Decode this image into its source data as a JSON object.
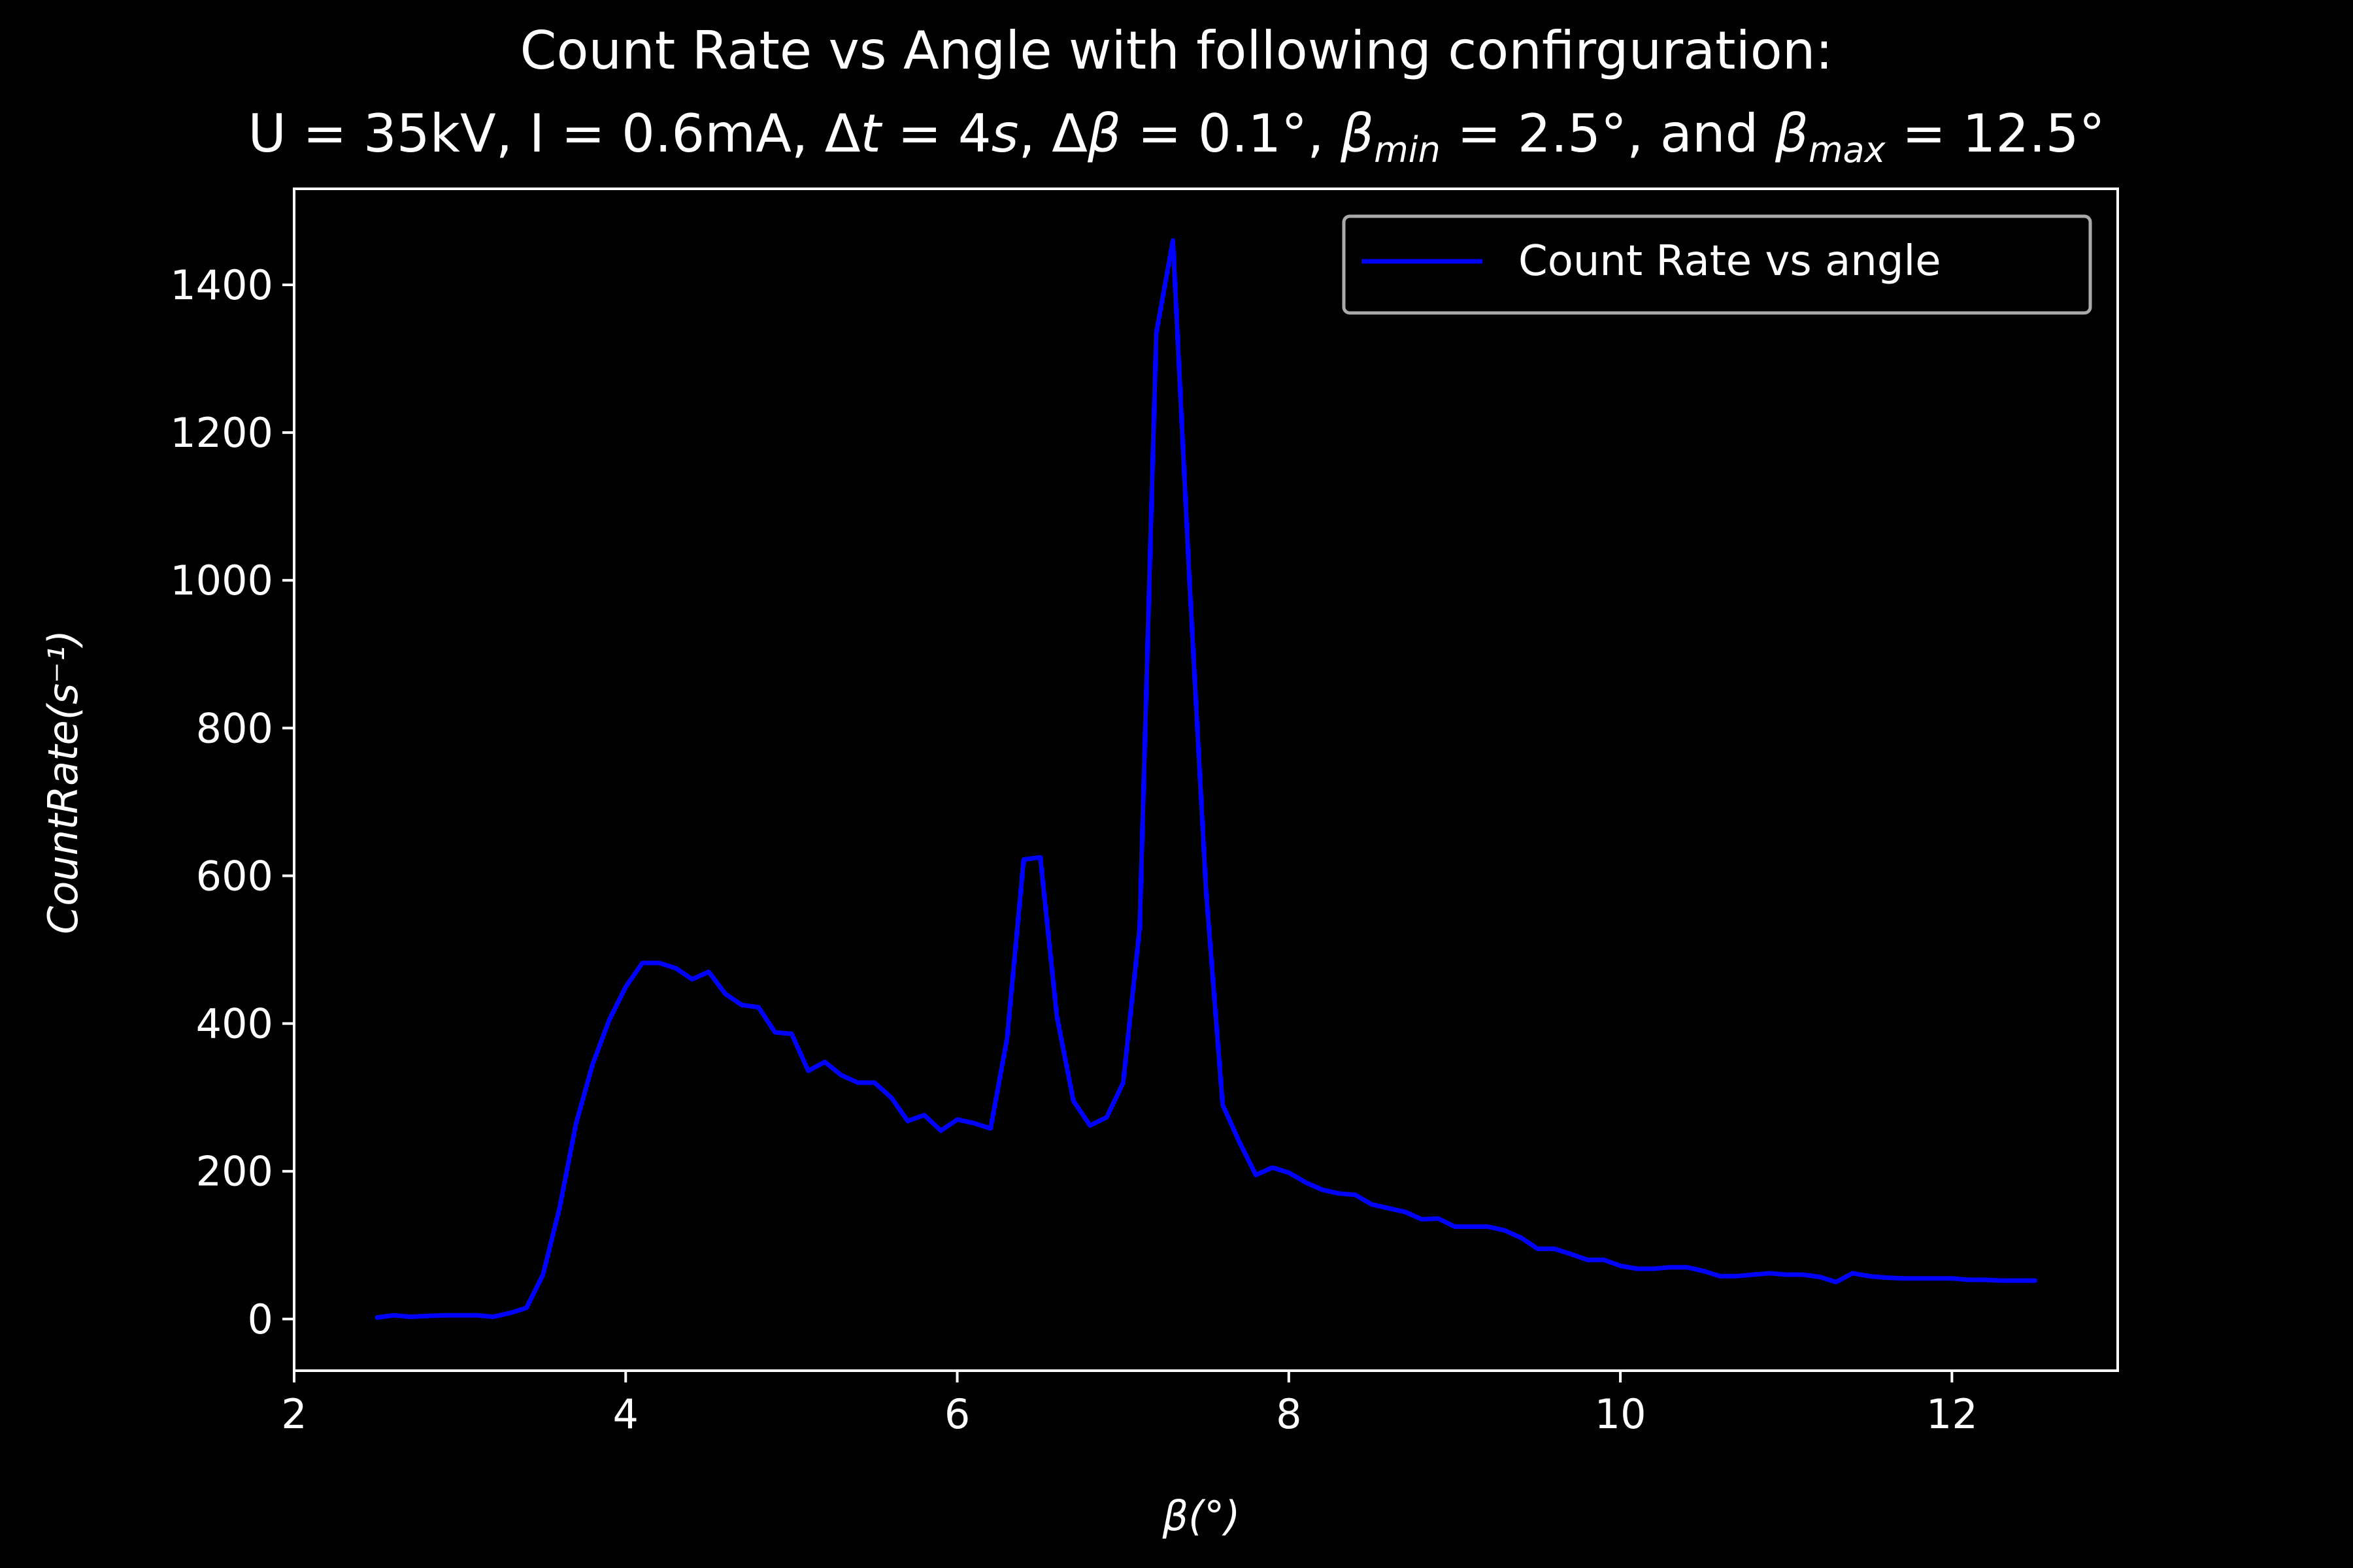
{
  "chart_data": {
    "type": "line",
    "title_line1": "Count Rate vs Angle with following confirguration:",
    "title_line2": "U = 35kV, I = 0.6mA, Δt = 4s, Δβ = 0.1°, βmin = 2.5°,  and βmax = 12.5°",
    "xlabel": "β(°)",
    "ylabel": "CountRate(s⁻¹)",
    "xlim": [
      2,
      13
    ],
    "ylim": [
      -70,
      1530
    ],
    "xticks": [
      2,
      4,
      6,
      8,
      10,
      12
    ],
    "yticks": [
      0,
      200,
      400,
      600,
      800,
      1000,
      1200,
      1400
    ],
    "grid": false,
    "legend_position": "top-right",
    "colors": {
      "background": "#000000",
      "axes": "#ffffff",
      "series": "#0000ff"
    },
    "series": [
      {
        "name": "Count Rate vs angle",
        "x": [
          2.5,
          2.6,
          2.7,
          2.8,
          2.9,
          3.0,
          3.1,
          3.2,
          3.3,
          3.4,
          3.5,
          3.6,
          3.7,
          3.8,
          3.9,
          4.0,
          4.1,
          4.2,
          4.3,
          4.4,
          4.5,
          4.6,
          4.7,
          4.8,
          4.9,
          5.0,
          5.1,
          5.2,
          5.3,
          5.4,
          5.5,
          5.6,
          5.7,
          5.8,
          5.9,
          6.0,
          6.1,
          6.2,
          6.3,
          6.4,
          6.5,
          6.6,
          6.7,
          6.8,
          6.9,
          7.0,
          7.1,
          7.2,
          7.3,
          7.4,
          7.5,
          7.6,
          7.7,
          7.8,
          7.9,
          8.0,
          8.1,
          8.2,
          8.3,
          8.4,
          8.5,
          8.6,
          8.7,
          8.8,
          8.9,
          9.0,
          9.1,
          9.2,
          9.3,
          9.4,
          9.5,
          9.6,
          9.7,
          9.8,
          9.9,
          10.0,
          10.1,
          10.2,
          10.3,
          10.4,
          10.5,
          10.6,
          10.7,
          10.8,
          10.9,
          11.0,
          11.1,
          11.2,
          11.3,
          11.4,
          11.5,
          11.6,
          11.7,
          11.8,
          11.9,
          12.0,
          12.1,
          12.2,
          12.3,
          12.4,
          12.5
        ],
        "y": [
          2,
          5,
          3,
          4,
          5,
          5,
          5,
          3,
          8,
          15,
          60,
          150,
          265,
          345,
          405,
          450,
          482,
          482,
          475,
          460,
          470,
          440,
          425,
          422,
          388,
          386,
          336,
          348,
          330,
          320,
          320,
          300,
          268,
          276,
          255,
          270,
          265,
          258,
          380,
          622,
          625,
          410,
          295,
          262,
          273,
          320,
          530,
          1335,
          1460,
          1000,
          580,
          290,
          240,
          195,
          205,
          198,
          185,
          175,
          170,
          168,
          155,
          150,
          145,
          135,
          136,
          125,
          125,
          125,
          120,
          110,
          95,
          95,
          88,
          80,
          80,
          72,
          68,
          68,
          70,
          70,
          65,
          58,
          58,
          60,
          62,
          60,
          60,
          57,
          50,
          62,
          58,
          56,
          55,
          55,
          55,
          55,
          53,
          53,
          52,
          52,
          52
        ]
      }
    ]
  }
}
